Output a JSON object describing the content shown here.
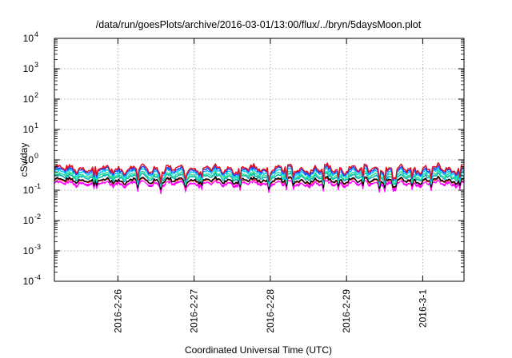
{
  "chart_data": {
    "type": "area",
    "title": "/data/run/goesPlots/archive/2016-03-01/13:00/flux/../bryn/5daysMoon.plot",
    "xlabel": "Coordinated Universal Time (UTC)",
    "ylabel": "cSv/day",
    "yscale": "log",
    "ylim": [
      0.0001,
      10000
    ],
    "xlim": [
      "2016-02-25T04:00",
      "2016-03-01T13:00"
    ],
    "grid": true,
    "legend": "none",
    "y_ticks": [
      {
        "value": 0.0001,
        "base": "10",
        "exp": "-4"
      },
      {
        "value": 0.001,
        "base": "10",
        "exp": "-3"
      },
      {
        "value": 0.01,
        "base": "10",
        "exp": "-2"
      },
      {
        "value": 0.1,
        "base": "10",
        "exp": "-1"
      },
      {
        "value": 1,
        "base": "10",
        "exp": "0"
      },
      {
        "value": 10,
        "base": "10",
        "exp": "1"
      },
      {
        "value": 100,
        "base": "10",
        "exp": "2"
      },
      {
        "value": 1000,
        "base": "10",
        "exp": "3"
      },
      {
        "value": 10000,
        "base": "10",
        "exp": "4"
      }
    ],
    "x_ticks": [
      {
        "value": "2016-02-26T00:00",
        "label": "2016-2-26"
      },
      {
        "value": "2016-02-27T00:00",
        "label": "2016-2-27"
      },
      {
        "value": "2016-02-28T00:00",
        "label": "2016-2-28"
      },
      {
        "value": "2016-02-29T00:00",
        "label": "2016-2-29"
      },
      {
        "value": "2016-03-01T00:00",
        "label": "2016-3-1"
      }
    ],
    "series": [
      {
        "color": "#ff00ff",
        "style": "filled",
        "level": 0.17
      },
      {
        "color": "#ff3030",
        "style": "line",
        "level": 0.2
      },
      {
        "color": "#000000",
        "style": "line",
        "level": 0.21
      },
      {
        "color": "#00b0b0",
        "style": "line",
        "level": 0.27
      },
      {
        "color": "#2fe090",
        "style": "line",
        "level": 0.31
      },
      {
        "color": "#00c8ff",
        "style": "line",
        "level": 0.38
      },
      {
        "color": "#2040ff",
        "style": "line",
        "level": 0.44
      },
      {
        "color": "#e01020",
        "style": "line",
        "level": 0.5
      }
    ]
  }
}
